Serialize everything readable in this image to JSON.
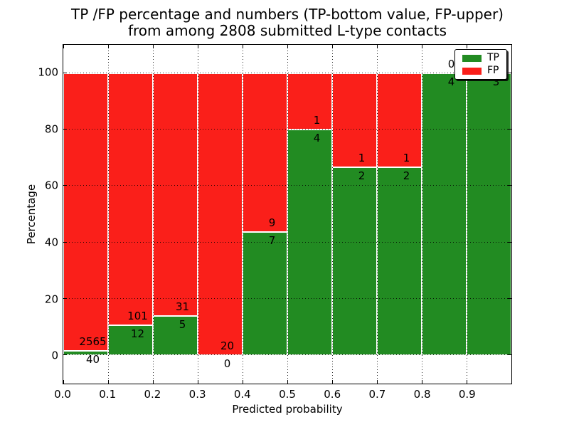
{
  "title": {
    "line1": "TP /FP percentage and numbers (TP-bottom value, FP-upper)",
    "line2": "from among 2808 submitted L-type contacts"
  },
  "axes": {
    "xlabel": "Predicted probability",
    "ylabel": "Percentage",
    "xtick_labels": [
      "0.0",
      "0.1",
      "0.2",
      "0.3",
      "0.4",
      "0.5",
      "0.6",
      "0.7",
      "0.8",
      "0.9"
    ],
    "ytick_values": [
      0,
      20,
      40,
      60,
      80,
      100
    ],
    "xlim": [
      0.0,
      1.0
    ],
    "ylim": [
      -10,
      110
    ]
  },
  "legend": {
    "position": "upper right",
    "items": [
      {
        "label": "TP",
        "color": "#228b22"
      },
      {
        "label": "FP",
        "color": "#fa1f1a"
      }
    ]
  },
  "colors": {
    "tp": "#228b22",
    "fp": "#fa1f1a",
    "grid": "#000000",
    "background": "#ffffff"
  },
  "chart_data": {
    "type": "bar",
    "stacked": true,
    "normalized": "percent",
    "grid": true,
    "title": "TP /FP percentage and numbers (TP-bottom value, FP-upper) from among 2808 submitted L-type contacts",
    "xlabel": "Predicted probability",
    "ylabel": "Percentage",
    "total_contacts": 2808,
    "categories": [
      "0.0-0.1",
      "0.1-0.2",
      "0.2-0.3",
      "0.3-0.4",
      "0.4-0.5",
      "0.5-0.6",
      "0.6-0.7",
      "0.7-0.8",
      "0.8-0.9",
      "0.9-1.0"
    ],
    "series": [
      {
        "name": "TP",
        "counts": [
          40,
          12,
          5,
          0,
          7,
          4,
          2,
          2,
          4,
          3
        ]
      },
      {
        "name": "FP",
        "counts": [
          2565,
          101,
          31,
          20,
          9,
          1,
          1,
          1,
          0,
          0
        ]
      }
    ],
    "tp_percent": [
      1.54,
      10.62,
      13.89,
      0.0,
      43.75,
      80.0,
      66.67,
      66.67,
      100.0,
      100.0
    ],
    "fp_percent": [
      98.46,
      89.38,
      86.11,
      100.0,
      56.25,
      20.0,
      33.33,
      33.33,
      0.0,
      0.0
    ]
  }
}
